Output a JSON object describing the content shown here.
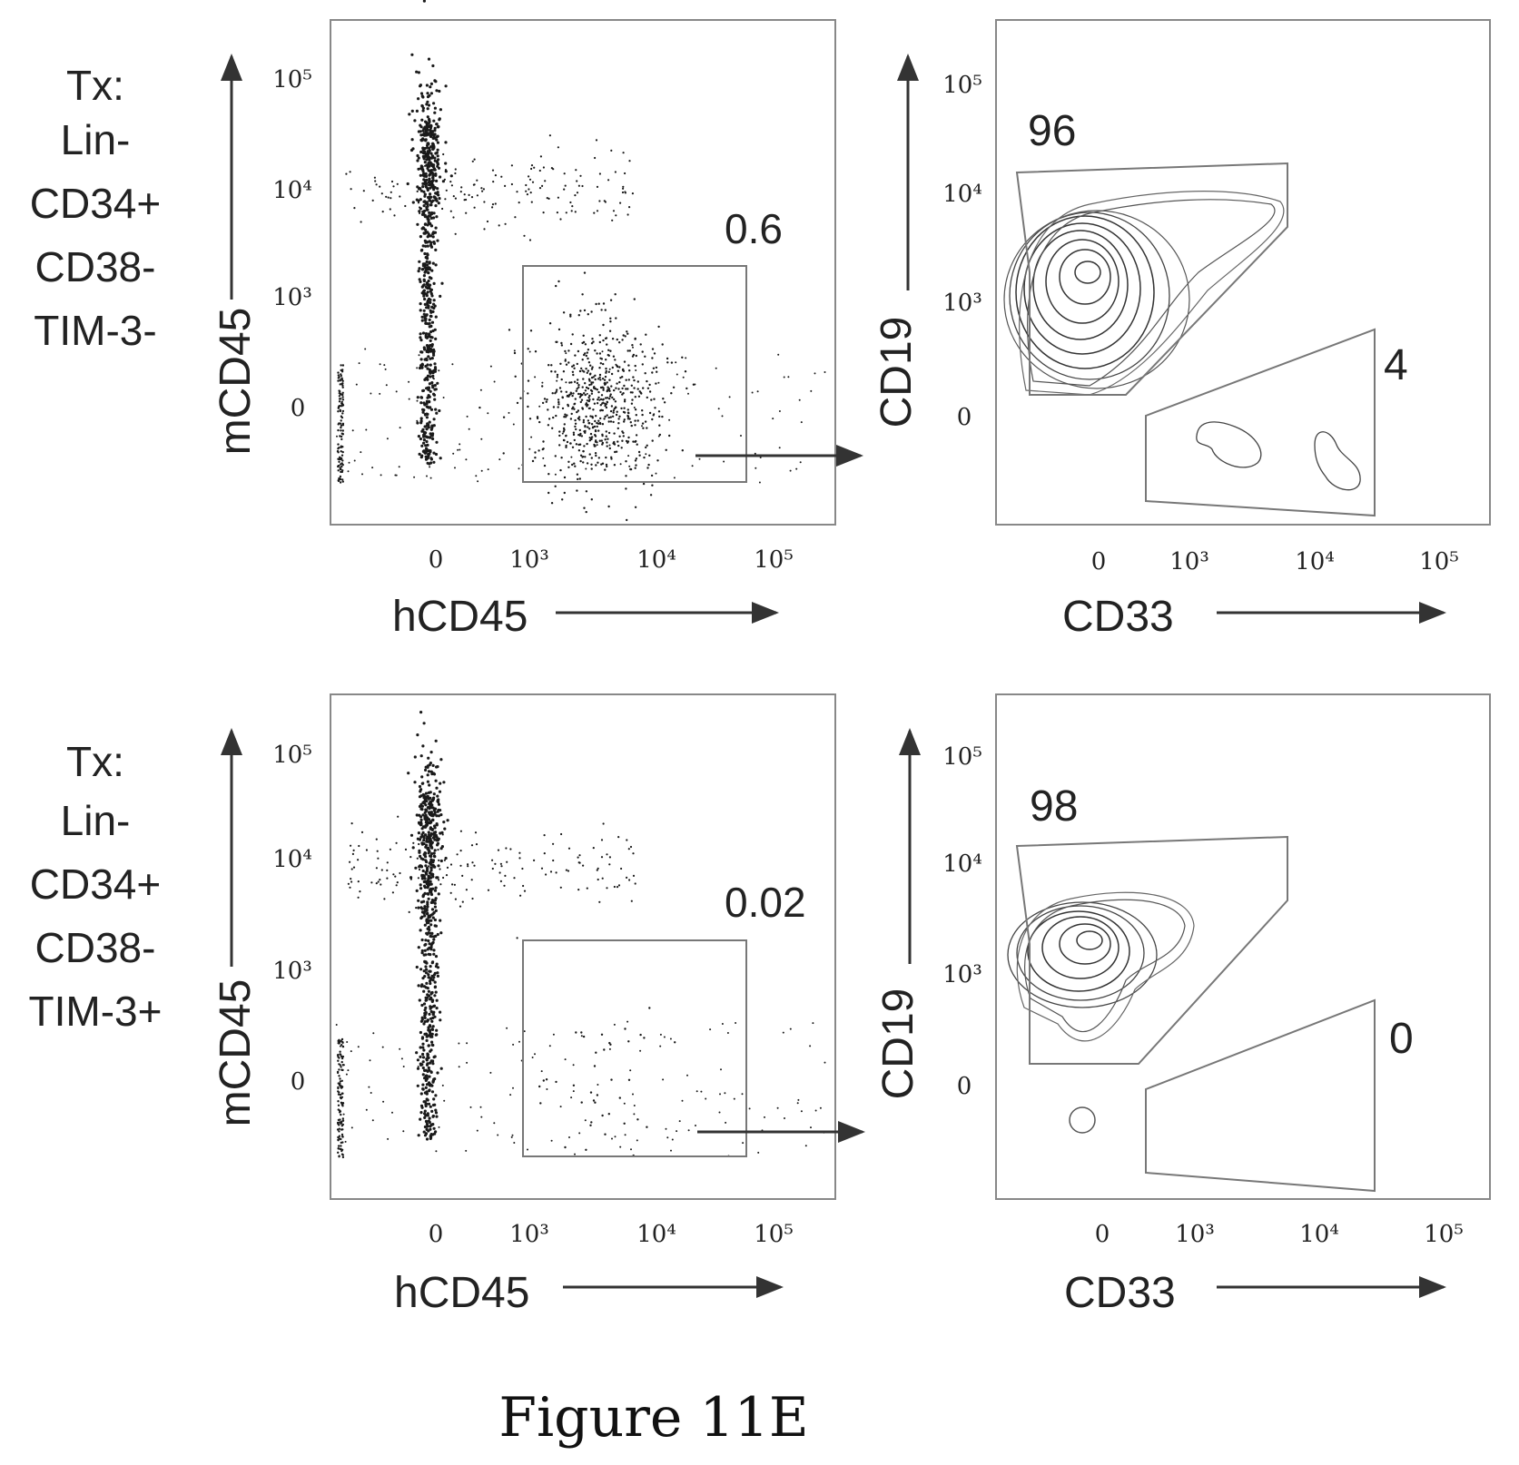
{
  "figure_caption": "Figure 11E",
  "colors": {
    "ink": "#222222",
    "frame": "#888888",
    "gate": "#777777",
    "dots": "#1a1a1a"
  },
  "rows": [
    {
      "condition": [
        "Tx:",
        "Lin-",
        "CD34+",
        "CD38-",
        "TIM-3-"
      ]
    },
    {
      "condition": [
        "Tx:",
        "Lin-",
        "CD34+",
        "CD38-",
        "TIM-3+"
      ]
    }
  ],
  "chart_data": [
    {
      "type": "scatter",
      "title": "",
      "xlabel": "hCD45",
      "ylabel": "mCD45",
      "x_scale": "biexponential",
      "y_scale": "biexponential",
      "x_ticks": [
        "0",
        "10³",
        "10⁴",
        "10⁵"
      ],
      "y_ticks": [
        "0",
        "10³",
        "10⁴",
        "10⁵"
      ],
      "gate": {
        "label": "0.6",
        "percent": 0.6,
        "x_range": [
          300,
          50000
        ],
        "y_range": [
          -300,
          1800
        ]
      }
    },
    {
      "type": "contour",
      "title": "",
      "xlabel": "CD33",
      "ylabel": "CD19",
      "x_scale": "biexponential",
      "y_scale": "biexponential",
      "x_ticks": [
        "0",
        "10³",
        "10⁴",
        "10⁵"
      ],
      "y_ticks": [
        "0",
        "10³",
        "10⁴",
        "10⁵"
      ],
      "gates": [
        {
          "label": "96",
          "percent": 96
        },
        {
          "label": "4",
          "percent": 4
        }
      ]
    },
    {
      "type": "scatter",
      "title": "",
      "xlabel": "hCD45",
      "ylabel": "mCD45",
      "x_scale": "biexponential",
      "y_scale": "biexponential",
      "x_ticks": [
        "0",
        "10³",
        "10⁴",
        "10⁵"
      ],
      "y_ticks": [
        "0",
        "10³",
        "10⁴",
        "10⁵"
      ],
      "gate": {
        "label": "0.02",
        "percent": 0.02,
        "x_range": [
          300,
          50000
        ],
        "y_range": [
          -300,
          1800
        ]
      }
    },
    {
      "type": "contour",
      "title": "",
      "xlabel": "CD33",
      "ylabel": "CD19",
      "x_scale": "biexponential",
      "y_scale": "biexponential",
      "x_ticks": [
        "0",
        "10³",
        "10⁴",
        "10⁵"
      ],
      "y_ticks": [
        "0",
        "10³",
        "10⁴",
        "10⁵"
      ],
      "gates": [
        {
          "label": "98",
          "percent": 98
        },
        {
          "label": "0",
          "percent": 0
        }
      ]
    }
  ]
}
